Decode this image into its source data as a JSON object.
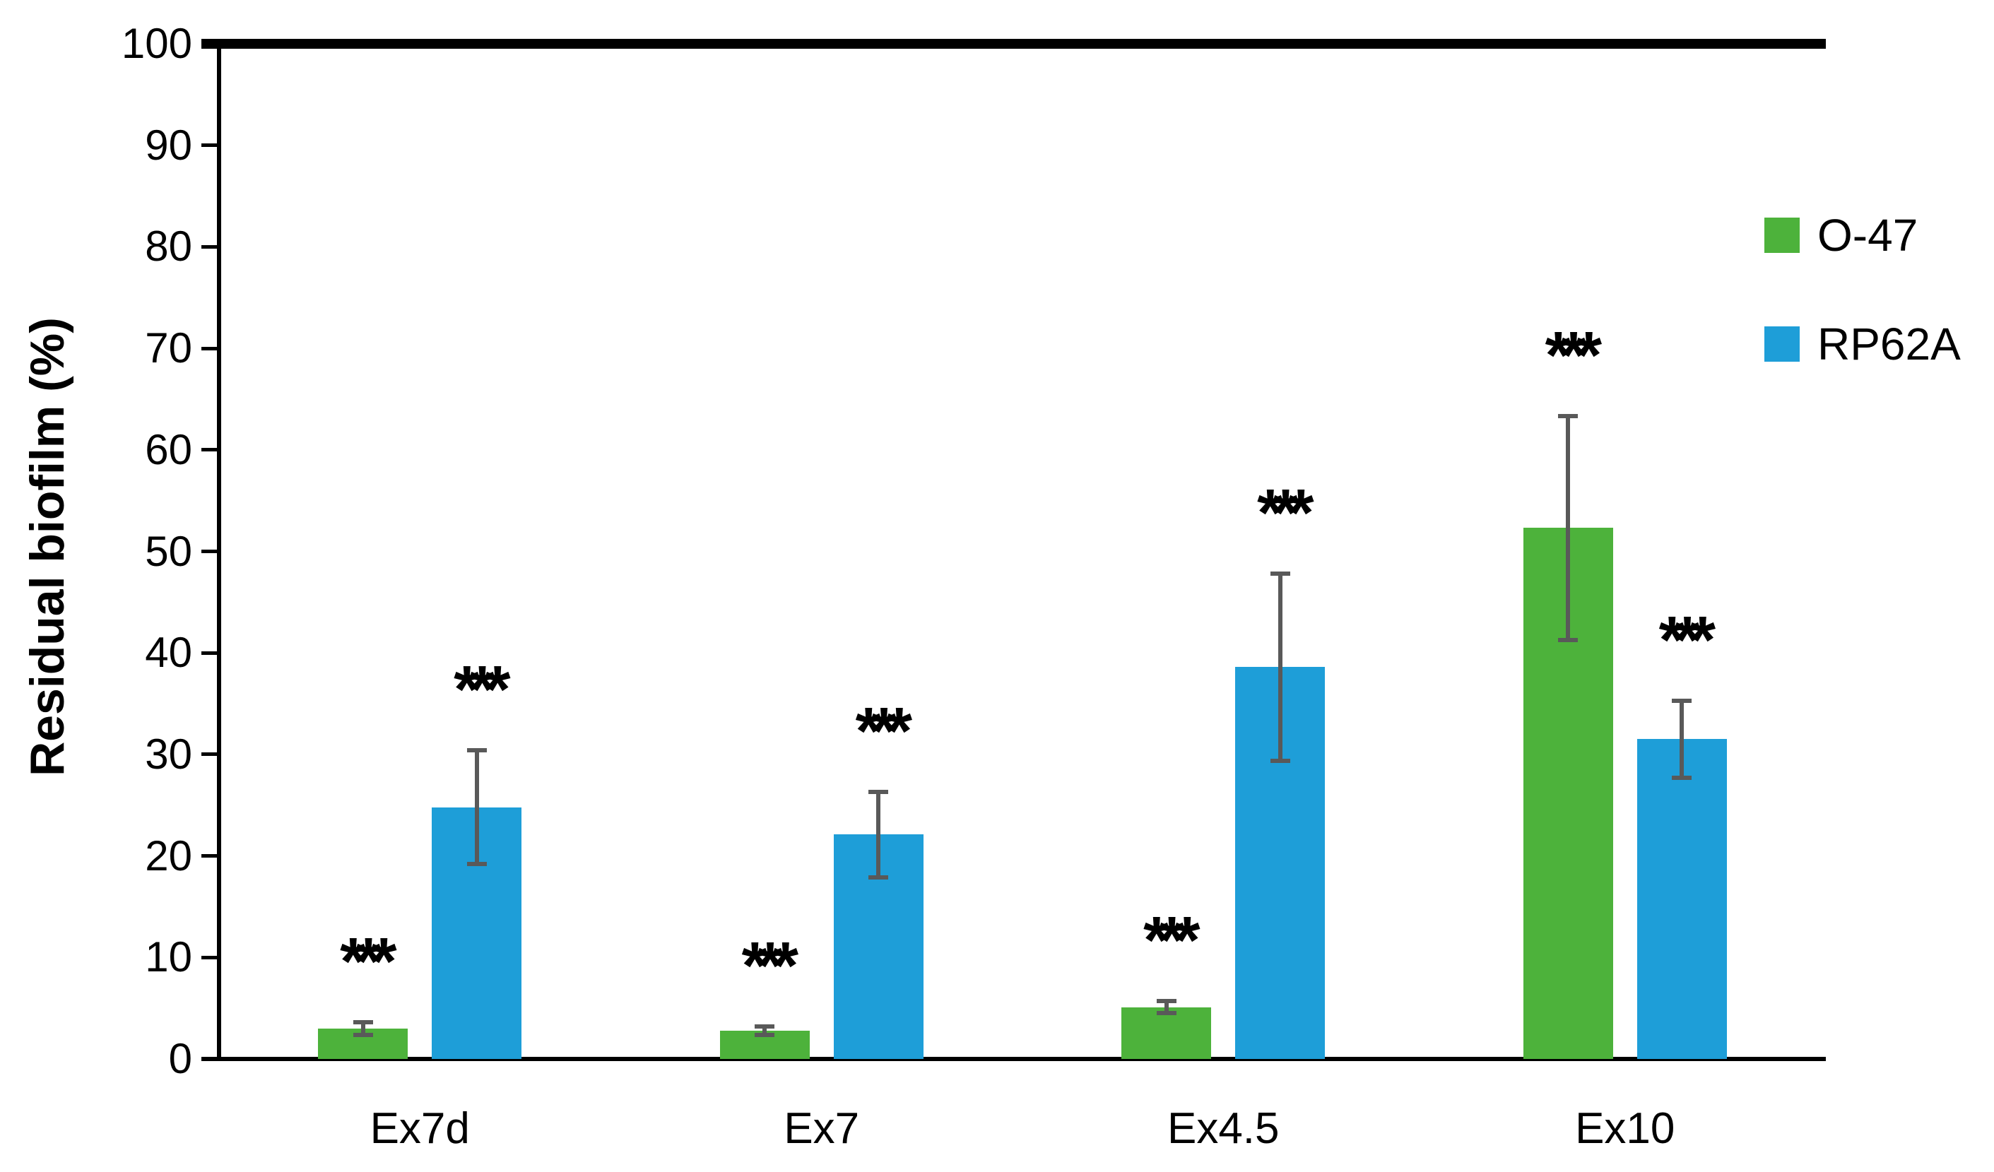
{
  "figure": {
    "background": "#ffffff"
  },
  "chart_data": {
    "type": "bar",
    "title": "",
    "xlabel": "",
    "ylabel": "Residual biofilm (%)",
    "ylim": [
      0,
      100
    ],
    "ytick_step": 10,
    "yticks": [
      0,
      10,
      20,
      30,
      40,
      50,
      60,
      70,
      80,
      90,
      100
    ],
    "grid": false,
    "legend_position": "top-right",
    "categories": [
      "Ex7d",
      "Ex7",
      "Ex4.5",
      "Ex10"
    ],
    "series": [
      {
        "name": "O-47",
        "color": "#4db23b",
        "values": [
          3.0,
          2.8,
          5.1,
          52.3
        ],
        "errors": [
          0.6,
          0.4,
          0.6,
          11.0
        ],
        "significance": [
          "***",
          "***",
          "***",
          "***"
        ]
      },
      {
        "name": "RP62A",
        "color": "#1e9ed8",
        "values": [
          24.8,
          22.1,
          38.6,
          31.5
        ],
        "errors": [
          5.6,
          4.2,
          9.2,
          3.8
        ],
        "significance": [
          "***",
          "***",
          "***",
          "***"
        ]
      }
    ],
    "reference_line": {
      "value": 100,
      "color": "#000000"
    },
    "error_bar_color": "#595959",
    "axis_color": "#000000",
    "text_color": "#000000"
  }
}
